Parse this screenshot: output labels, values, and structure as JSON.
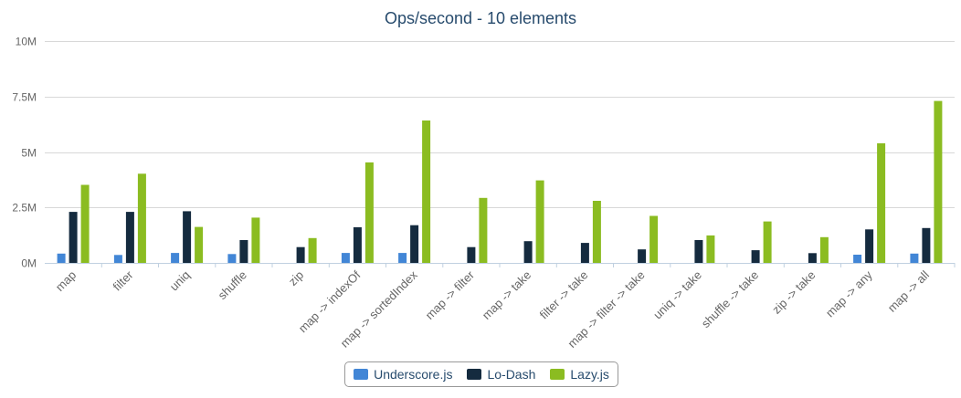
{
  "chart_data": {
    "type": "bar",
    "title": "Ops/second - 10 elements",
    "xlabel": "",
    "ylabel": "",
    "ylim": [
      0,
      10000000
    ],
    "yticks": [
      {
        "value": 0,
        "label": "0M"
      },
      {
        "value": 2500000,
        "label": "2.5M"
      },
      {
        "value": 5000000,
        "label": "5M"
      },
      {
        "value": 7500000,
        "label": "7.5M"
      },
      {
        "value": 10000000,
        "label": "10M"
      }
    ],
    "grid": true,
    "legend_position": "bottom",
    "categories": [
      "map",
      "filter",
      "uniq",
      "shuffle",
      "zip",
      "map -> indexOf",
      "map -> sortedIndex",
      "map -> filter",
      "map -> take",
      "filter -> take",
      "map -> filter -> take",
      "uniq -> take",
      "shuffle -> take",
      "zip -> take",
      "map -> any",
      "map -> all"
    ],
    "series": [
      {
        "name": "Underscore.js",
        "color": "#4286d6",
        "values": [
          420000,
          360000,
          450000,
          400000,
          0,
          450000,
          450000,
          0,
          0,
          0,
          0,
          0,
          0,
          0,
          370000,
          420000
        ]
      },
      {
        "name": "Lo-Dash",
        "color": "#152b3f",
        "values": [
          2300000,
          2300000,
          2330000,
          1030000,
          710000,
          1610000,
          1700000,
          710000,
          980000,
          900000,
          610000,
          1030000,
          570000,
          440000,
          1510000,
          1570000
        ]
      },
      {
        "name": "Lazy.js",
        "color": "#8bbc21",
        "values": [
          3520000,
          4020000,
          1620000,
          2040000,
          1120000,
          4530000,
          6420000,
          2930000,
          3720000,
          2800000,
          2120000,
          1240000,
          1870000,
          1160000,
          5390000,
          7300000
        ]
      }
    ]
  }
}
